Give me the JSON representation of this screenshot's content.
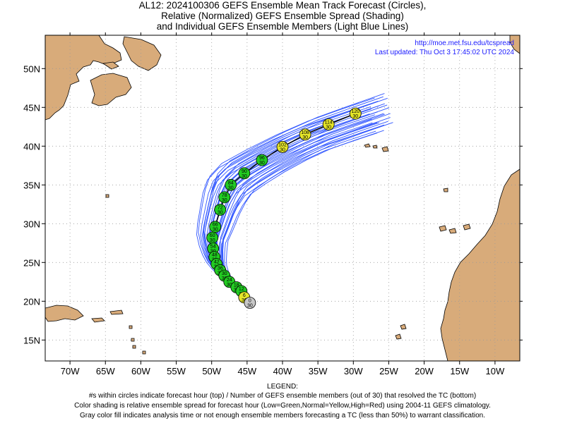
{
  "title": {
    "line1": "AL12: 2024100306 GEFS Ensemble Mean Track Forecast (Circles),",
    "line2": "Relative (Normalized) GEFS Ensemble Spread (Shading)",
    "line3": "and Individual GEFS Ensemble Members (Light Blue Lines)"
  },
  "credit": {
    "url": "http://moe.met.fsu.edu/tcspread",
    "updated": "Last updated: Thu Oct 3 17:45:02 UTC 2024"
  },
  "axes": {
    "lon_labels": [
      "70W",
      "65W",
      "60W",
      "55W",
      "50W",
      "45W",
      "40W",
      "35W",
      "30W",
      "25W",
      "20W",
      "15W",
      "10W"
    ],
    "lat_labels": [
      "50N",
      "45N",
      "40N",
      "35N",
      "30N",
      "25N",
      "20N",
      "15N"
    ],
    "lon_values": [
      -70,
      -65,
      -60,
      -55,
      -50,
      -45,
      -40,
      -35,
      -30,
      -25,
      -20,
      -15,
      -10
    ],
    "lat_values": [
      50,
      45,
      40,
      35,
      30,
      25,
      20,
      15
    ],
    "lon_range": [
      -73.5,
      -6.5
    ],
    "lat_range": [
      12.3,
      54.3
    ],
    "grid": "dotted"
  },
  "colors": {
    "land": "#d8ab7a",
    "ocean": "#ffffff",
    "member_tracks": "#2f55ff",
    "mean_track": "#000000",
    "spread_low": "#22cc22",
    "spread_normal": "#e6e62a",
    "not_enough": "#c8c8c8"
  },
  "mean_track": [
    {
      "hour": "0",
      "members": "30",
      "lon": -44.6,
      "lat": 19.8,
      "spread": "gray"
    },
    {
      "hour": "6",
      "members": "30",
      "lon": -45.4,
      "lat": 20.5,
      "spread": "yellow"
    },
    {
      "hour": "12",
      "members": "30",
      "lon": -45.8,
      "lat": 21.3,
      "spread": "green"
    },
    {
      "hour": "18",
      "members": "30",
      "lon": -46.5,
      "lat": 21.8,
      "spread": "green"
    },
    {
      "hour": "24",
      "members": "30",
      "lon": -47.5,
      "lat": 22.5,
      "spread": "green"
    },
    {
      "hour": "30",
      "members": "30",
      "lon": -48.2,
      "lat": 23.3,
      "spread": "green"
    },
    {
      "hour": "36",
      "members": "30",
      "lon": -48.8,
      "lat": 24.0,
      "spread": "green"
    },
    {
      "hour": "42",
      "members": "30",
      "lon": -49.3,
      "lat": 24.8,
      "spread": "green"
    },
    {
      "hour": "48",
      "members": "30",
      "lon": -49.6,
      "lat": 25.7,
      "spread": "green"
    },
    {
      "hour": "54",
      "members": "30",
      "lon": -49.8,
      "lat": 26.8,
      "spread": "green"
    },
    {
      "hour": "60",
      "members": "30",
      "lon": -49.9,
      "lat": 28.2,
      "spread": "green"
    },
    {
      "hour": "66",
      "members": "30",
      "lon": -49.5,
      "lat": 29.6,
      "spread": "green"
    },
    {
      "hour": "72",
      "members": "30",
      "lon": -48.8,
      "lat": 31.8,
      "spread": "green"
    },
    {
      "hour": "78",
      "members": "30",
      "lon": -48.2,
      "lat": 33.4,
      "spread": "green"
    },
    {
      "hour": "84",
      "members": "30",
      "lon": -47.3,
      "lat": 35.0,
      "spread": "green"
    },
    {
      "hour": "90",
      "members": "30",
      "lon": -45.4,
      "lat": 36.5,
      "spread": "green"
    },
    {
      "hour": "96",
      "members": "30",
      "lon": -42.9,
      "lat": 38.2,
      "spread": "green"
    },
    {
      "hour": "102",
      "members": "30",
      "lon": -40.0,
      "lat": 39.9,
      "spread": "yellow"
    },
    {
      "hour": "108",
      "members": "30",
      "lon": -36.8,
      "lat": 41.5,
      "spread": "yellow"
    },
    {
      "hour": "114",
      "members": "30",
      "lon": -33.5,
      "lat": 42.8,
      "spread": "yellow"
    },
    {
      "hour": "120",
      "members": "30",
      "lon": -29.7,
      "lat": 44.2,
      "spread": "yellow"
    }
  ],
  "legend": {
    "heading": "LEGEND:",
    "line1": "#s within circles indicate forecast hour (top) / Number of GEFS ensemble members (out of 30) that resolved the TC (bottom)",
    "line2": "Color shading is relative ensemble spread for forecast hour (Low=Green,Normal=Yellow,High=Red) using 2004-11 GEFS climatology.",
    "line3": "Gray color fill indicates analysis time or not enough ensemble members forecasting a TC (less than 50%) to warrant classification."
  }
}
